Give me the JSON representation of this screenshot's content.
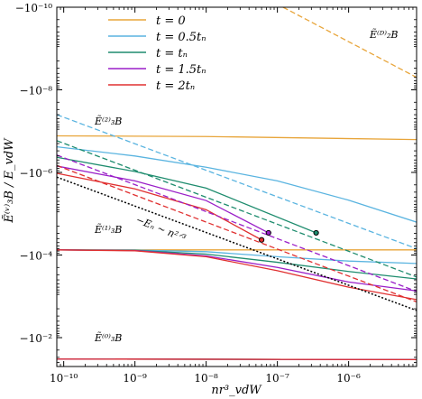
{
  "chart_data": {
    "type": "line",
    "xlabel": "nr³_vdW",
    "ylabel": "Ẽ⁽ᵛ⁾₃B / E_vdW",
    "x_scale": "log",
    "y_scale": "log",
    "y_inverted_negative": true,
    "xlim": [
      8e-11,
      9e-06
    ],
    "ylim": [
      -1e-10,
      -0.05
    ],
    "x_ticks": [
      1e-10,
      1e-09,
      1e-08,
      1e-07,
      1e-06
    ],
    "x_tick_labels": [
      "10⁻¹⁰",
      "10⁻⁹",
      "10⁻⁸",
      "10⁻⁷",
      "10⁻⁶"
    ],
    "y_ticks": [
      1e-10,
      1e-08,
      1e-06,
      0.0001,
      0.01
    ],
    "y_tick_labels": [
      "−10⁻¹⁰",
      "−10⁻⁸",
      "−10⁻⁶",
      "−10⁻⁴",
      "−10⁻²"
    ],
    "legend": {
      "placement": "top-left",
      "entries": [
        {
          "label": "t = 0",
          "color": "#E8A53A"
        },
        {
          "label": "t = 0.5tₙ",
          "color": "#5AB4E0"
        },
        {
          "label": "t = tₙ",
          "color": "#1E8C6E"
        },
        {
          "label": "t = 1.5tₙ",
          "color": "#9A1FC8"
        },
        {
          "label": "t = 2tₙ",
          "color": "#E03030"
        }
      ]
    },
    "annotations": {
      "e2b": "Ẽ⁽ᴰ⁾₂B",
      "e3b2": "Ẽ⁽²⁾₃B",
      "e3b1": "Ẽ⁽¹⁾₃B",
      "e3b0": "Ẽ⁽⁰⁾₃B",
      "en": "−Eₙ ∼ n²ᐟ³"
    },
    "series": [
      {
        "group": "E3B2",
        "color": "#E8A53A",
        "dash": false,
        "x": [
          8e-11,
          1e-08,
          9e-06
        ],
        "y": [
          1.3e-07,
          1.35e-07,
          1.6e-07
        ]
      },
      {
        "group": "E3B2",
        "color": "#5AB4E0",
        "dash": false,
        "x": [
          8e-11,
          1e-09,
          1e-08,
          1e-07,
          1e-06,
          9e-06
        ],
        "y": [
          2.4e-07,
          4e-07,
          7.5e-07,
          1.6e-06,
          4.7e-06,
          1.6e-05
        ]
      },
      {
        "group": "E3B2",
        "color": "#1E8C6E",
        "dash": false,
        "x": [
          8e-11,
          1e-09,
          1e-08,
          3.5e-07
        ],
        "y": [
          4.3e-07,
          9.5e-07,
          2.4e-06,
          2.9e-05
        ]
      },
      {
        "group": "E3B2",
        "color": "#9A1FC8",
        "dash": false,
        "x": [
          8e-11,
          1e-09,
          1e-08,
          7.5e-08
        ],
        "y": [
          7e-07,
          1.6e-06,
          4.8e-06,
          2.9e-05
        ]
      },
      {
        "group": "E3B2",
        "color": "#E03030",
        "dash": false,
        "x": [
          8e-11,
          1e-09,
          1e-08,
          6e-08
        ],
        "y": [
          1.05e-06,
          2.5e-06,
          8e-06,
          4.3e-05
        ]
      },
      {
        "group": "E3B1",
        "color": "#E8A53A",
        "dash": false,
        "x": [
          8e-11,
          9e-06
        ],
        "y": [
          7.5e-05,
          7.5e-05
        ]
      },
      {
        "group": "E3B1",
        "color": "#5AB4E0",
        "dash": false,
        "x": [
          8e-11,
          1e-09,
          1e-08,
          1e-07,
          1e-06,
          9e-06
        ],
        "y": [
          7.5e-05,
          7.6e-05,
          8.3e-05,
          0.00011,
          0.00014,
          0.00016
        ]
      },
      {
        "group": "E3B1",
        "color": "#1E8C6E",
        "dash": false,
        "x": [
          8e-11,
          1e-09,
          1e-08,
          1e-07,
          1e-06,
          9e-06
        ],
        "y": [
          7.5e-05,
          7.7e-05,
          9.5e-05,
          0.00015,
          0.00025,
          0.00038
        ]
      },
      {
        "group": "E3B1",
        "color": "#9A1FC8",
        "dash": false,
        "x": [
          8e-11,
          1e-09,
          1e-08,
          1e-07,
          1e-06,
          9e-06
        ],
        "y": [
          7.5e-05,
          7.8e-05,
          0.000105,
          0.0002,
          0.00045,
          0.00074
        ]
      },
      {
        "group": "E3B1",
        "color": "#E03030",
        "dash": false,
        "x": [
          8e-11,
          1e-09,
          1e-08,
          1e-07,
          1e-06,
          9e-06
        ],
        "y": [
          7.5e-05,
          7.9e-05,
          0.00011,
          0.00024,
          0.0006,
          0.0012
        ]
      },
      {
        "group": "E3B0",
        "color": "#E8A53A",
        "dash": false,
        "x": [
          8e-11,
          9e-06
        ],
        "y": [
          0.033,
          0.034
        ]
      },
      {
        "group": "E3B0",
        "color": "#5AB4E0",
        "dash": false,
        "x": [
          8e-11,
          9e-06
        ],
        "y": [
          0.033,
          0.034
        ]
      },
      {
        "group": "E3B0",
        "color": "#1E8C6E",
        "dash": false,
        "x": [
          8e-11,
          9e-06
        ],
        "y": [
          0.033,
          0.034
        ]
      },
      {
        "group": "E3B0",
        "color": "#9A1FC8",
        "dash": false,
        "x": [
          8e-11,
          9e-06
        ],
        "y": [
          0.033,
          0.034
        ]
      },
      {
        "group": "E3B0",
        "color": "#E03030",
        "dash": false,
        "x": [
          8e-11,
          9e-06
        ],
        "y": [
          0.033,
          0.034
        ]
      },
      {
        "group": "E2B",
        "color": "#E8A53A",
        "dash": true,
        "x": [
          1.2e-07,
          9e-06
        ],
        "y": [
          1e-10,
          5e-09
        ]
      },
      {
        "group": "E2B",
        "color": "#5AB4E0",
        "dash": true,
        "x": [
          8e-11,
          9e-06
        ],
        "y": [
          4e-08,
          7e-05
        ]
      },
      {
        "group": "E2B",
        "color": "#1E8C6E",
        "dash": true,
        "x": [
          8e-11,
          9e-06
        ],
        "y": [
          1.7e-07,
          0.00034
        ]
      },
      {
        "group": "E2B",
        "color": "#9A1FC8",
        "dash": true,
        "x": [
          8e-11,
          9e-06
        ],
        "y": [
          3.8e-07,
          0.00076
        ]
      },
      {
        "group": "E2B",
        "color": "#E03030",
        "dash": true,
        "x": [
          8e-11,
          9e-06
        ],
        "y": [
          6.8e-07,
          0.00136
        ]
      },
      {
        "group": "En",
        "color": "#000000",
        "dash": "dot",
        "x": [
          8e-11,
          9e-06
        ],
        "y": [
          1.3e-06,
          0.0022
        ]
      }
    ],
    "markers": [
      {
        "color": "#1E8C6E",
        "x": 3.5e-07,
        "y": 2.9e-05
      },
      {
        "color": "#9A1FC8",
        "x": 7.5e-08,
        "y": 2.9e-05
      },
      {
        "color": "#E03030",
        "x": 6e-08,
        "y": 4.3e-05
      }
    ]
  }
}
